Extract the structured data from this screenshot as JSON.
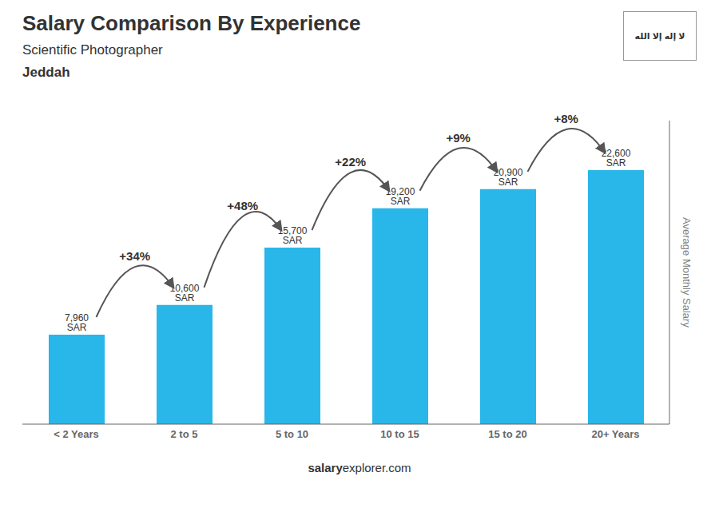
{
  "chart_data": {
    "type": "bar",
    "title": "Salary Comparison By Experience",
    "subtitle": "Scientific Photographer",
    "categories": [
      "< 2 Years",
      "2 to 5",
      "5 to 10",
      "10 to 15",
      "15 to 20",
      "20+ Years"
    ],
    "values": [
      7960,
      10600,
      15700,
      19200,
      20900,
      22600
    ],
    "value_labels": [
      "7,960 SAR",
      "10,600 SAR",
      "15,700 SAR",
      "19,200 SAR",
      "20,900 SAR",
      "22,600 SAR"
    ],
    "data_labels": true,
    "color": "#29b6e8",
    "y_label": "Average Monthly Salary",
    "ylim": [
      0,
      27000
    ],
    "tick_labels": "x",
    "grid": false,
    "annotations": [
      {
        "text": "+34%",
        "from": "< 2 Years",
        "to": "2 to 5"
      },
      {
        "text": "+48%",
        "from": "2 to 5",
        "to": "5 to 10"
      },
      {
        "text": "+22%",
        "from": "5 to 10",
        "to": "10 to 15"
      },
      {
        "text": "+9%",
        "from": "10 to 15",
        "to": "15 to 20"
      },
      {
        "text": "+8%",
        "from": "15 to 20",
        "to": "20+ Years"
      },
      {
        "text": "Jeddah"
      },
      {
        "text": "salary"
      },
      {
        "text": "explorer.com"
      },
      {
        "text": "لا إله إلا الله"
      }
    ]
  }
}
